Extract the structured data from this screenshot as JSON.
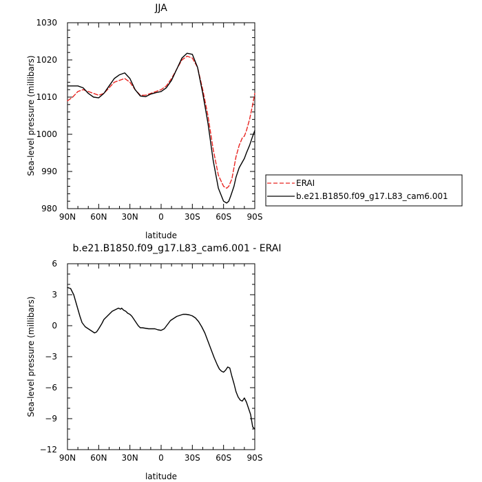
{
  "chart_data": [
    {
      "type": "line",
      "title": "JJA",
      "xlabel": "latitude",
      "ylabel": "Sea-level pressure (millibars)",
      "xlim": [
        90,
        -90
      ],
      "ylim": [
        980,
        1030
      ],
      "x_ticks": [
        90,
        60,
        30,
        0,
        -30,
        -60,
        -90
      ],
      "x_tick_labels": [
        "90N",
        "60N",
        "30N",
        "0",
        "30S",
        "60S",
        "90S"
      ],
      "y_ticks": [
        980,
        990,
        1000,
        1010,
        1020,
        1030
      ],
      "y_tick_labels": [
        "980",
        "990",
        "1000",
        "1010",
        "1020",
        "1030"
      ],
      "grid": false,
      "legend": "right",
      "series": [
        {
          "name": "ERAI",
          "color": "#e8231f",
          "dash": "dashed",
          "x": [
            90,
            85,
            80,
            75,
            70,
            65,
            60,
            55,
            50,
            45,
            40,
            35,
            30,
            25,
            20,
            15,
            10,
            5,
            0,
            -5,
            -10,
            -15,
            -20,
            -25,
            -30,
            -35,
            -40,
            -45,
            -50,
            -55,
            -60,
            -63,
            -65,
            -68,
            -70,
            -72,
            -75,
            -78,
            -80,
            -82,
            -85,
            -88,
            -90
          ],
          "y": [
            1009,
            1010,
            1011.5,
            1012,
            1011.5,
            1011,
            1010.5,
            1011,
            1012.5,
            1014,
            1014.5,
            1015,
            1014,
            1012,
            1010.5,
            1010.5,
            1011,
            1011.5,
            1012,
            1013,
            1015,
            1017.5,
            1020,
            1021,
            1020.5,
            1018,
            1012,
            1005,
            996,
            989,
            986,
            985.5,
            986,
            988,
            991,
            994,
            997,
            999,
            999.5,
            1001,
            1004,
            1008,
            1011
          ]
        },
        {
          "name": "b.e21.B1850.f09_g17.L83_cam6.001",
          "color": "#000000",
          "dash": "solid",
          "x": [
            90,
            85,
            80,
            75,
            70,
            65,
            60,
            55,
            50,
            45,
            40,
            35,
            30,
            25,
            20,
            15,
            10,
            5,
            0,
            -5,
            -10,
            -15,
            -20,
            -25,
            -30,
            -35,
            -40,
            -45,
            -50,
            -55,
            -60,
            -63,
            -65,
            -67,
            -70,
            -72,
            -75,
            -78,
            -80,
            -82,
            -85,
            -88,
            -90
          ],
          "y": [
            1013,
            1013,
            1013,
            1012.5,
            1011,
            1010,
            1009.8,
            1011,
            1013,
            1015,
            1016,
            1016.5,
            1015,
            1012,
            1010.3,
            1010.1,
            1010.8,
            1011.2,
            1011.5,
            1012.5,
            1014.5,
            1017.5,
            1020.5,
            1021.8,
            1021.5,
            1018,
            1011,
            1003,
            993,
            985.5,
            982,
            981.5,
            982,
            983.5,
            986,
            988.5,
            991,
            992.5,
            993.5,
            995,
            997,
            999.5,
            1001
          ]
        }
      ]
    },
    {
      "type": "line",
      "title": "b.e21.B1850.f09_g17.L83_cam6.001 - ERAI",
      "xlabel": "latitude",
      "ylabel": "Sea-level pressure (millibars)",
      "xlim": [
        90,
        -90
      ],
      "ylim": [
        -12,
        6
      ],
      "x_ticks": [
        90,
        60,
        30,
        0,
        -30,
        -60,
        -90
      ],
      "x_tick_labels": [
        "90N",
        "60N",
        "30N",
        "0",
        "30S",
        "60S",
        "90S"
      ],
      "y_ticks": [
        -12,
        -9,
        -6,
        -3,
        0,
        3,
        6
      ],
      "y_tick_labels": [
        "−12",
        "−9",
        "−6",
        "−3",
        "0",
        "3",
        "6"
      ],
      "grid": false,
      "series": [
        {
          "color": "#000000",
          "dash": "solid",
          "x": [
            90,
            87,
            84,
            82,
            80,
            78,
            76,
            73,
            70,
            67,
            64,
            62,
            60,
            57,
            55,
            52,
            50,
            47,
            45,
            43,
            41,
            39,
            38,
            36,
            34,
            32,
            30,
            28,
            26,
            24,
            22,
            20,
            18,
            15,
            12,
            9,
            6,
            3,
            0,
            -3,
            -6,
            -9,
            -12,
            -15,
            -18,
            -21,
            -24,
            -27,
            -30,
            -33,
            -36,
            -39,
            -42,
            -45,
            -48,
            -51,
            -54,
            -56,
            -58,
            -60,
            -62,
            -64,
            -66,
            -68,
            -70,
            -72,
            -74,
            -76,
            -78,
            -80,
            -82,
            -84,
            -86,
            -88,
            -90
          ],
          "y": [
            3.7,
            3.6,
            3.0,
            2.3,
            1.6,
            0.9,
            0.3,
            -0.1,
            -0.3,
            -0.5,
            -0.7,
            -0.6,
            -0.3,
            0.2,
            0.6,
            0.9,
            1.1,
            1.4,
            1.5,
            1.6,
            1.7,
            1.6,
            1.7,
            1.5,
            1.4,
            1.2,
            1.1,
            0.9,
            0.6,
            0.3,
            0.0,
            -0.2,
            -0.2,
            -0.25,
            -0.3,
            -0.3,
            -0.3,
            -0.4,
            -0.45,
            -0.3,
            0.1,
            0.5,
            0.7,
            0.9,
            1.0,
            1.1,
            1.1,
            1.05,
            0.95,
            0.75,
            0.4,
            -0.1,
            -0.7,
            -1.5,
            -2.3,
            -3.1,
            -3.8,
            -4.2,
            -4.4,
            -4.5,
            -4.3,
            -4.0,
            -4.1,
            -4.9,
            -5.6,
            -6.4,
            -6.9,
            -7.2,
            -7.3,
            -7.0,
            -7.4,
            -8.0,
            -8.6,
            -9.8,
            -10.0
          ]
        }
      ]
    }
  ]
}
